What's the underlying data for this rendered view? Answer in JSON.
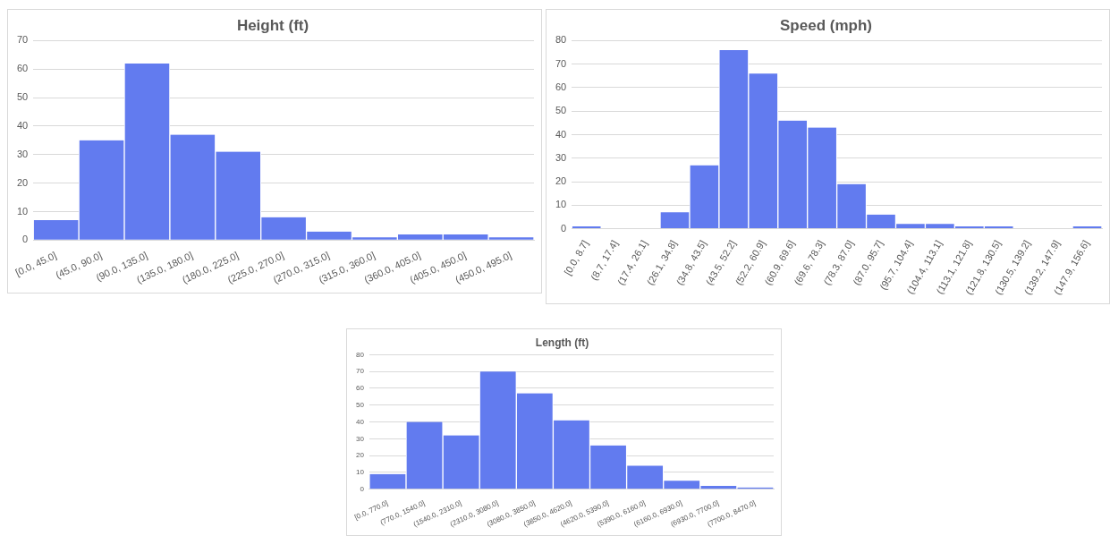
{
  "chart_data": [
    {
      "type": "bar",
      "title": "Height (ft)",
      "categories": [
        "[0.0, 45.0]",
        "(45.0, 90.0]",
        "(90.0, 135.0]",
        "(135.0, 180.0]",
        "(180.0, 225.0]",
        "(225.0, 270.0]",
        "(270.0, 315.0]",
        "(315.0, 360.0]",
        "(360.0, 405.0]",
        "(405.0, 450.0]",
        "(450.0, 495.0]"
      ],
      "values": [
        7,
        35,
        62,
        37,
        31,
        8,
        3,
        1,
        2,
        2,
        1
      ],
      "color": "#627bef",
      "ylim": [
        0,
        70
      ],
      "yticks": [
        0,
        10,
        20,
        30,
        40,
        50,
        60,
        70
      ],
      "grid": "y"
    },
    {
      "type": "bar",
      "title": "Speed (mph)",
      "categories": [
        "[0.0, 8.7]",
        "(8.7, 17.4]",
        "(17.4, 26.1]",
        "(26.1, 34.8]",
        "(34.8, 43.5]",
        "(43.5, 52.2]",
        "(52.2, 60.9]",
        "(60.9, 69.6]",
        "(69.6, 78.3]",
        "(78.3, 87.0]",
        "(87.0, 95.7]",
        "(95.7, 104.4]",
        "(104.4, 113.1]",
        "(113.1, 121.8]",
        "(121.8, 130.5]",
        "(130.5, 139.2]",
        "(139.2, 147.9]",
        "(147.9, 156.6]"
      ],
      "values": [
        1,
        0,
        0,
        7,
        27,
        76,
        66,
        46,
        43,
        19,
        6,
        2,
        2,
        1,
        1,
        0,
        0,
        1
      ],
      "color": "#627bef",
      "ylim": [
        0,
        80
      ],
      "yticks": [
        0,
        10,
        20,
        30,
        40,
        50,
        60,
        70,
        80
      ],
      "grid": "y"
    },
    {
      "type": "bar",
      "title": "Length (ft)",
      "categories": [
        "[0.0, 770.0]",
        "(770.0, 1540.0]",
        "(1540.0, 2310.0]",
        "(2310.0, 3080.0]",
        "(3080.0, 3850.0]",
        "(3850.0, 4620.0]",
        "(4620.0, 5390.0]",
        "(5390.0, 6160.0]",
        "(6160.0, 6930.0]",
        "(6930.0, 7700.0]",
        "(7700.0, 8470.0]"
      ],
      "values": [
        9,
        40,
        32,
        70,
        57,
        41,
        26,
        14,
        5,
        2,
        1
      ],
      "color": "#627bef",
      "ylim": [
        0,
        80
      ],
      "yticks": [
        0,
        10,
        20,
        30,
        40,
        50,
        60,
        70,
        80
      ],
      "grid": "y"
    }
  ]
}
